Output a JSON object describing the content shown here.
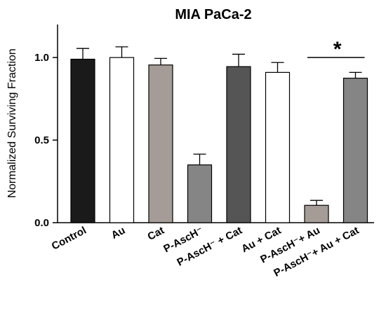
{
  "chart_data": {
    "type": "bar",
    "title": "MIA PaCa-2",
    "ylabel": "Normalized Surviving Fraction",
    "xlabel": "",
    "ylim": [
      0,
      1.2
    ],
    "yticks": [
      0.0,
      0.5,
      1.0
    ],
    "ytick_labels": [
      "0.0",
      "0.5",
      "1.0"
    ],
    "grid": false,
    "legend": "none",
    "categories": [
      "Control",
      "Au",
      "Cat",
      "P-AscH⁻",
      "P-AscH⁻ + Cat",
      "Au + Cat",
      "P-AscH⁻+ Au",
      "P-AscH⁻+ Au + Cat"
    ],
    "values": [
      0.99,
      1.0,
      0.955,
      0.35,
      0.945,
      0.91,
      0.105,
      0.875
    ],
    "errors": [
      0.065,
      0.065,
      0.04,
      0.065,
      0.075,
      0.06,
      0.03,
      0.035
    ],
    "colors": [
      "#1a1a1a",
      "#ffffff",
      "#a59c98",
      "#858585",
      "#555555",
      "#ffffff",
      "#a59c98",
      "#858585"
    ],
    "significance": {
      "from": 6,
      "to": 7,
      "y": 1.0,
      "label": "*"
    }
  }
}
